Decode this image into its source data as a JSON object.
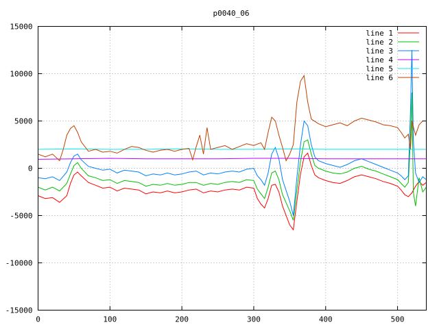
{
  "chart_data": {
    "type": "line",
    "title": "p0040_06",
    "xlabel": "",
    "ylabel": "",
    "xlim": [
      0,
      540
    ],
    "ylim": [
      -15000,
      15000
    ],
    "xticks": [
      0,
      100,
      200,
      300,
      400,
      500
    ],
    "yticks": [
      -15000,
      -10000,
      -5000,
      0,
      5000,
      10000,
      15000
    ],
    "grid": true,
    "legend_position": "top-right",
    "series": [
      {
        "name": "line 1",
        "color": "#ff0000",
        "points": [
          [
            0,
            -2900
          ],
          [
            10,
            -3200
          ],
          [
            20,
            -3100
          ],
          [
            30,
            -3600
          ],
          [
            40,
            -2900
          ],
          [
            45,
            -1600
          ],
          [
            50,
            -700
          ],
          [
            55,
            -400
          ],
          [
            60,
            -800
          ],
          [
            70,
            -1500
          ],
          [
            80,
            -1800
          ],
          [
            90,
            -2100
          ],
          [
            100,
            -2000
          ],
          [
            110,
            -2400
          ],
          [
            120,
            -2100
          ],
          [
            130,
            -2200
          ],
          [
            140,
            -2300
          ],
          [
            150,
            -2700
          ],
          [
            160,
            -2500
          ],
          [
            170,
            -2600
          ],
          [
            180,
            -2400
          ],
          [
            190,
            -2600
          ],
          [
            200,
            -2500
          ],
          [
            210,
            -2300
          ],
          [
            220,
            -2200
          ],
          [
            230,
            -2600
          ],
          [
            240,
            -2400
          ],
          [
            250,
            -2500
          ],
          [
            260,
            -2300
          ],
          [
            270,
            -2200
          ],
          [
            280,
            -2300
          ],
          [
            290,
            -2000
          ],
          [
            300,
            -2100
          ],
          [
            305,
            -3200
          ],
          [
            310,
            -3800
          ],
          [
            315,
            -4200
          ],
          [
            320,
            -3200
          ],
          [
            325,
            -1800
          ],
          [
            330,
            -1700
          ],
          [
            335,
            -2500
          ],
          [
            340,
            -4000
          ],
          [
            350,
            -6000
          ],
          [
            355,
            -6500
          ],
          [
            360,
            -3500
          ],
          [
            365,
            -600
          ],
          [
            370,
            1200
          ],
          [
            375,
            1600
          ],
          [
            380,
            300
          ],
          [
            385,
            -700
          ],
          [
            390,
            -1000
          ],
          [
            400,
            -1300
          ],
          [
            410,
            -1500
          ],
          [
            420,
            -1600
          ],
          [
            430,
            -1300
          ],
          [
            440,
            -900
          ],
          [
            450,
            -700
          ],
          [
            460,
            -900
          ],
          [
            470,
            -1100
          ],
          [
            480,
            -1400
          ],
          [
            490,
            -1600
          ],
          [
            500,
            -1900
          ],
          [
            505,
            -2300
          ],
          [
            510,
            -2800
          ],
          [
            515,
            -3000
          ],
          [
            520,
            -2600
          ],
          [
            525,
            -1900
          ],
          [
            530,
            -1400
          ],
          [
            535,
            -1800
          ],
          [
            540,
            -1500
          ]
        ]
      },
      {
        "name": "line 2",
        "color": "#00c000",
        "points": [
          [
            0,
            -2000
          ],
          [
            10,
            -2300
          ],
          [
            20,
            -2000
          ],
          [
            30,
            -2400
          ],
          [
            40,
            -1600
          ],
          [
            45,
            -600
          ],
          [
            50,
            300
          ],
          [
            55,
            600
          ],
          [
            60,
            0
          ],
          [
            70,
            -800
          ],
          [
            80,
            -1000
          ],
          [
            90,
            -1300
          ],
          [
            100,
            -1200
          ],
          [
            110,
            -1600
          ],
          [
            120,
            -1300
          ],
          [
            130,
            -1400
          ],
          [
            140,
            -1500
          ],
          [
            150,
            -1900
          ],
          [
            160,
            -1700
          ],
          [
            170,
            -1800
          ],
          [
            180,
            -1600
          ],
          [
            190,
            -1800
          ],
          [
            200,
            -1700
          ],
          [
            210,
            -1500
          ],
          [
            220,
            -1500
          ],
          [
            230,
            -1800
          ],
          [
            240,
            -1600
          ],
          [
            250,
            -1700
          ],
          [
            260,
            -1500
          ],
          [
            270,
            -1400
          ],
          [
            280,
            -1500
          ],
          [
            290,
            -1200
          ],
          [
            300,
            -1300
          ],
          [
            305,
            -2200
          ],
          [
            310,
            -2700
          ],
          [
            315,
            -3200
          ],
          [
            320,
            -2000
          ],
          [
            325,
            -500
          ],
          [
            330,
            -300
          ],
          [
            335,
            -1200
          ],
          [
            340,
            -2800
          ],
          [
            350,
            -4500
          ],
          [
            355,
            -5500
          ],
          [
            360,
            -2300
          ],
          [
            365,
            700
          ],
          [
            370,
            2800
          ],
          [
            375,
            3000
          ],
          [
            380,
            1500
          ],
          [
            385,
            300
          ],
          [
            390,
            0
          ],
          [
            400,
            -300
          ],
          [
            410,
            -500
          ],
          [
            420,
            -600
          ],
          [
            430,
            -400
          ],
          [
            440,
            0
          ],
          [
            450,
            200
          ],
          [
            460,
            -100
          ],
          [
            470,
            -300
          ],
          [
            480,
            -600
          ],
          [
            490,
            -900
          ],
          [
            500,
            -1200
          ],
          [
            505,
            -1600
          ],
          [
            510,
            -2000
          ],
          [
            515,
            -1500
          ],
          [
            518,
            3000
          ],
          [
            520,
            8000
          ],
          [
            522,
            -2500
          ],
          [
            525,
            -4000
          ],
          [
            530,
            -1000
          ],
          [
            535,
            -2500
          ],
          [
            540,
            -2000
          ]
        ]
      },
      {
        "name": "line 3",
        "color": "#0080ff",
        "points": [
          [
            0,
            -1000
          ],
          [
            10,
            -1100
          ],
          [
            20,
            -900
          ],
          [
            30,
            -1300
          ],
          [
            40,
            -400
          ],
          [
            45,
            600
          ],
          [
            50,
            1300
          ],
          [
            55,
            1500
          ],
          [
            60,
            900
          ],
          [
            70,
            200
          ],
          [
            80,
            0
          ],
          [
            90,
            -200
          ],
          [
            100,
            -100
          ],
          [
            110,
            -500
          ],
          [
            120,
            -200
          ],
          [
            130,
            -300
          ],
          [
            140,
            -400
          ],
          [
            150,
            -800
          ],
          [
            160,
            -600
          ],
          [
            170,
            -700
          ],
          [
            180,
            -500
          ],
          [
            190,
            -700
          ],
          [
            200,
            -600
          ],
          [
            210,
            -400
          ],
          [
            220,
            -300
          ],
          [
            230,
            -700
          ],
          [
            240,
            -500
          ],
          [
            250,
            -600
          ],
          [
            260,
            -400
          ],
          [
            270,
            -300
          ],
          [
            280,
            -400
          ],
          [
            290,
            -100
          ],
          [
            300,
            0
          ],
          [
            305,
            -800
          ],
          [
            310,
            -1200
          ],
          [
            315,
            -1800
          ],
          [
            320,
            -500
          ],
          [
            325,
            1500
          ],
          [
            330,
            2200
          ],
          [
            335,
            1000
          ],
          [
            340,
            -1200
          ],
          [
            350,
            -3500
          ],
          [
            355,
            -5000
          ],
          [
            360,
            -1000
          ],
          [
            365,
            2500
          ],
          [
            370,
            5000
          ],
          [
            375,
            4500
          ],
          [
            380,
            2500
          ],
          [
            385,
            1200
          ],
          [
            390,
            800
          ],
          [
            400,
            500
          ],
          [
            410,
            300
          ],
          [
            420,
            100
          ],
          [
            430,
            400
          ],
          [
            440,
            800
          ],
          [
            450,
            1000
          ],
          [
            460,
            700
          ],
          [
            470,
            400
          ],
          [
            480,
            100
          ],
          [
            490,
            -200
          ],
          [
            500,
            -500
          ],
          [
            505,
            -800
          ],
          [
            510,
            -1200
          ],
          [
            515,
            -800
          ],
          [
            518,
            6000
          ],
          [
            520,
            12500
          ],
          [
            522,
            3000
          ],
          [
            525,
            -500
          ],
          [
            530,
            -1500
          ],
          [
            535,
            -900
          ],
          [
            540,
            -1200
          ]
        ]
      },
      {
        "name": "line 4",
        "color": "#c000ff",
        "points": [
          [
            0,
            950
          ],
          [
            50,
            1000
          ],
          [
            100,
            1050
          ],
          [
            150,
            1000
          ],
          [
            200,
            1000
          ],
          [
            250,
            1000
          ],
          [
            300,
            1050
          ],
          [
            350,
            1050
          ],
          [
            400,
            1000
          ],
          [
            450,
            1000
          ],
          [
            500,
            1000
          ],
          [
            540,
            1000
          ]
        ]
      },
      {
        "name": "line 5",
        "color": "#00eeee",
        "points": [
          [
            0,
            2000
          ],
          [
            50,
            2050
          ],
          [
            100,
            2000
          ],
          [
            150,
            2000
          ],
          [
            200,
            2050
          ],
          [
            250,
            2000
          ],
          [
            300,
            2000
          ],
          [
            350,
            2050
          ],
          [
            400,
            2000
          ],
          [
            450,
            2000
          ],
          [
            500,
            2000
          ],
          [
            540,
            2000
          ]
        ]
      },
      {
        "name": "line 6",
        "color": "#c04000",
        "points": [
          [
            0,
            1500
          ],
          [
            10,
            1200
          ],
          [
            20,
            1500
          ],
          [
            30,
            800
          ],
          [
            35,
            2000
          ],
          [
            40,
            3500
          ],
          [
            45,
            4200
          ],
          [
            50,
            4500
          ],
          [
            55,
            3800
          ],
          [
            60,
            2800
          ],
          [
            70,
            1800
          ],
          [
            80,
            2000
          ],
          [
            90,
            1700
          ],
          [
            100,
            1800
          ],
          [
            110,
            1600
          ],
          [
            120,
            2000
          ],
          [
            130,
            2300
          ],
          [
            140,
            2200
          ],
          [
            150,
            1900
          ],
          [
            160,
            1700
          ],
          [
            170,
            1900
          ],
          [
            180,
            2000
          ],
          [
            190,
            1800
          ],
          [
            200,
            2000
          ],
          [
            210,
            2100
          ],
          [
            215,
            900
          ],
          [
            220,
            2300
          ],
          [
            225,
            3500
          ],
          [
            230,
            1500
          ],
          [
            235,
            4300
          ],
          [
            240,
            2000
          ],
          [
            250,
            2200
          ],
          [
            260,
            2400
          ],
          [
            270,
            2000
          ],
          [
            280,
            2300
          ],
          [
            290,
            2600
          ],
          [
            300,
            2400
          ],
          [
            310,
            2700
          ],
          [
            315,
            2000
          ],
          [
            320,
            3800
          ],
          [
            325,
            5400
          ],
          [
            330,
            5000
          ],
          [
            335,
            3500
          ],
          [
            340,
            2200
          ],
          [
            345,
            800
          ],
          [
            350,
            1500
          ],
          [
            355,
            2500
          ],
          [
            360,
            7000
          ],
          [
            365,
            9200
          ],
          [
            370,
            9800
          ],
          [
            375,
            7000
          ],
          [
            380,
            5200
          ],
          [
            390,
            4700
          ],
          [
            400,
            4400
          ],
          [
            410,
            4600
          ],
          [
            420,
            4800
          ],
          [
            430,
            4500
          ],
          [
            440,
            5000
          ],
          [
            450,
            5300
          ],
          [
            460,
            5100
          ],
          [
            470,
            4900
          ],
          [
            480,
            4600
          ],
          [
            490,
            4500
          ],
          [
            500,
            4300
          ],
          [
            505,
            3800
          ],
          [
            510,
            3200
          ],
          [
            515,
            3600
          ],
          [
            518,
            2000
          ],
          [
            520,
            5000
          ],
          [
            525,
            3500
          ],
          [
            530,
            4600
          ],
          [
            535,
            5000
          ],
          [
            540,
            5000
          ]
        ]
      }
    ]
  }
}
